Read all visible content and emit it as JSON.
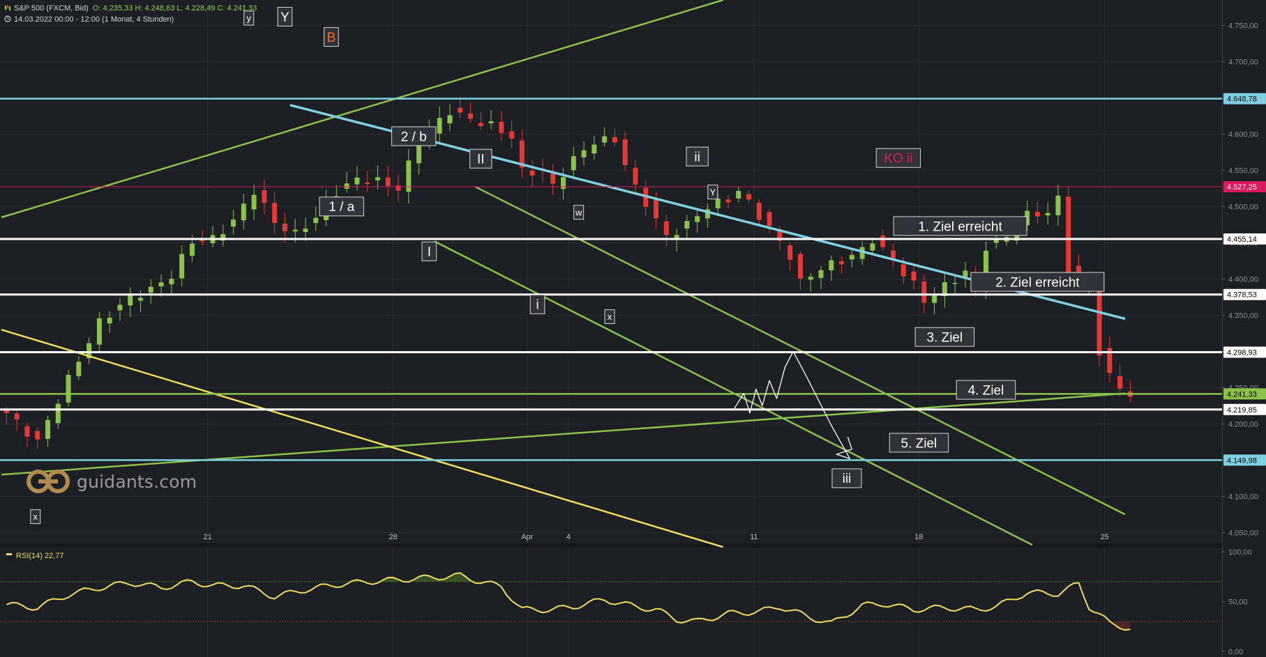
{
  "header": {
    "instrument": "S&P 500 (FXCM, Bid)",
    "ohlc": "O: 4.235,33   H: 4.248,63   L: 4.228,49   C: 4.241,33",
    "range": "14.03.2022 00:00 - 12:00   (1 Monat, 4 Stunden)"
  },
  "logo": {
    "text": "guidants.com",
    "icon": "guidants-logo-icon"
  },
  "colors": {
    "background": "#1c1f24",
    "grid": "#2a2e34",
    "bull": "#8bc34a",
    "bear": "#e53935",
    "green_line": "#8bc34a",
    "light_blue": "#7fd0e0",
    "yellow": "#f2dc5d",
    "ko_red": "#d81b60",
    "white": "#ffffff"
  },
  "chart_data": [
    {
      "type": "candlestick",
      "title": "S&P 500 (FXCM, Bid)",
      "interval": "4 Stunden",
      "ylim": [
        4035,
        4785
      ],
      "y_ticks": [
        "4.050,00",
        "4.100,00",
        "4.150,00",
        "4.200,00",
        "4.250,00",
        "4.300,00",
        "4.350,00",
        "4.400,00",
        "4.450,00",
        "4.500,00",
        "4.550,00",
        "4.600,00",
        "4.650,00",
        "4.700,00",
        "4.750,00"
      ],
      "y_ticks_values": [
        4050,
        4100,
        4150,
        4200,
        4250,
        4300,
        4350,
        4400,
        4450,
        4500,
        4550,
        4600,
        4650,
        4700,
        4750
      ],
      "x_ticks": [
        "21",
        "28",
        "Apr",
        "4",
        "11",
        "18",
        "25"
      ],
      "bar_count": 160,
      "x_tick_positions": [
        20,
        38,
        51,
        55,
        73,
        89,
        107
      ],
      "close_path": [
        [
          0,
          4215
        ],
        [
          3,
          4175
        ],
        [
          6,
          4262
        ],
        [
          9,
          4340
        ],
        [
          12,
          4375
        ],
        [
          14,
          4385
        ],
        [
          16,
          4405
        ],
        [
          18,
          4452
        ],
        [
          20,
          4455
        ],
        [
          22,
          4480
        ],
        [
          24,
          4522
        ],
        [
          26,
          4478
        ],
        [
          28,
          4462
        ],
        [
          30,
          4485
        ],
        [
          32,
          4520
        ],
        [
          34,
          4538
        ],
        [
          36,
          4535
        ],
        [
          38,
          4525
        ],
        [
          40,
          4590
        ],
        [
          42,
          4618
        ],
        [
          43,
          4632
        ],
        [
          45,
          4620
        ],
        [
          47,
          4612
        ],
        [
          49,
          4596
        ],
        [
          50,
          4548
        ],
        [
          52,
          4548
        ],
        [
          53,
          4528
        ],
        [
          55,
          4565
        ],
        [
          57,
          4590
        ],
        [
          59,
          4592
        ],
        [
          61,
          4525
        ],
        [
          62,
          4505
        ],
        [
          64,
          4458
        ],
        [
          66,
          4475
        ],
        [
          68,
          4500
        ],
        [
          70,
          4510
        ],
        [
          71,
          4522
        ],
        [
          72,
          4505
        ],
        [
          74,
          4470
        ],
        [
          76,
          4432
        ],
        [
          77,
          4395
        ],
        [
          79,
          4415
        ],
        [
          81,
          4425
        ],
        [
          83,
          4440
        ],
        [
          84,
          4455
        ],
        [
          86,
          4425
        ],
        [
          88,
          4392
        ],
        [
          89,
          4370
        ],
        [
          91,
          4390
        ],
        [
          93,
          4410
        ],
        [
          94,
          4385
        ],
        [
          95,
          4445
        ],
        [
          97,
          4458
        ],
        [
          99,
          4488
        ],
        [
          101,
          4492
        ],
        [
          102,
          4510
        ],
        [
          103,
          4415
        ],
        [
          104,
          4398
        ],
        [
          105,
          4392
        ],
        [
          106,
          4300
        ],
        [
          107,
          4265
        ],
        [
          108,
          4250
        ],
        [
          109,
          4241
        ]
      ],
      "horizontal_levels": [
        {
          "value": 4648.78,
          "label": "4.648,78",
          "color": "#7fd0e0"
        },
        {
          "value": 4527.25,
          "label": "4.527,25",
          "color": "#d81b60"
        },
        {
          "value": 4455.14,
          "label": "4.455,14",
          "color": "#ffffff"
        },
        {
          "value": 4378.53,
          "label": "4.378,53",
          "color": "#ffffff"
        },
        {
          "value": 4298.93,
          "label": "4.298,93",
          "color": "#ffffff"
        },
        {
          "value": 4241.33,
          "label": "4.241,33",
          "color": "#8bc34a"
        },
        {
          "value": 4219.85,
          "label": "4.219,85",
          "color": "#ffffff"
        },
        {
          "value": 4149.98,
          "label": "4.149,98",
          "color": "#7fd0e0"
        }
      ],
      "trendlines": [
        {
          "color": "#8bc34a",
          "from": [
            0,
            4485
          ],
          "to": [
            70,
            4785
          ]
        },
        {
          "color": "#8bc34a",
          "from": [
            0,
            4130
          ],
          "to": [
            109,
            4242
          ]
        },
        {
          "color": "#7fd0e0",
          "from": [
            28,
            4640
          ],
          "to": [
            109,
            4345
          ]
        },
        {
          "color": "#f2dc5d",
          "from": [
            0,
            4330
          ],
          "to": [
            70,
            4030
          ]
        },
        {
          "color": "#8bc34a",
          "from": [
            46,
            4527
          ],
          "to": [
            109,
            4075
          ]
        },
        {
          "color": "#8bc34a",
          "from": [
            42,
            4452
          ],
          "to": [
            100,
            4033
          ]
        }
      ],
      "annotations": [
        {
          "text": "y",
          "bar": 24,
          "value": 4760,
          "style": "small"
        },
        {
          "text": "Y",
          "bar": 27.5,
          "value": 4762,
          "style": "big"
        },
        {
          "text": "B",
          "bar": 32,
          "value": 4734,
          "style": "orange"
        },
        {
          "text": "2 / b",
          "bar": 40,
          "value": 4597,
          "style": "big"
        },
        {
          "text": "II",
          "bar": 46.5,
          "value": 4566,
          "style": "big"
        },
        {
          "text": "ii",
          "bar": 67.5,
          "value": 4569,
          "style": "big"
        },
        {
          "text": "Y",
          "bar": 69,
          "value": 4520,
          "style": "small"
        },
        {
          "text": "KO ii",
          "bar": 87,
          "value": 4567,
          "style": "ko"
        },
        {
          "text": "1 / a",
          "bar": 33,
          "value": 4500,
          "style": "big"
        },
        {
          "text": "w",
          "bar": 56,
          "value": 4492,
          "style": "small"
        },
        {
          "text": "I",
          "bar": 41.5,
          "value": 4438,
          "style": "big"
        },
        {
          "text": "i",
          "bar": 52,
          "value": 4365,
          "style": "big"
        },
        {
          "text": "x",
          "bar": 59,
          "value": 4348,
          "style": "small"
        },
        {
          "text": "1. Ziel  erreicht",
          "bar": 93,
          "value": 4473,
          "style": "big"
        },
        {
          "text": "2. Ziel  erreicht",
          "bar": 100.5,
          "value": 4396,
          "style": "big"
        },
        {
          "text": "3. Ziel",
          "bar": 91.5,
          "value": 4320,
          "style": "big"
        },
        {
          "text": "4. Ziel",
          "bar": 95.5,
          "value": 4247,
          "style": "big"
        },
        {
          "text": "5. Ziel",
          "bar": 89,
          "value": 4174,
          "style": "big"
        },
        {
          "text": "iii",
          "bar": 82,
          "value": 4125,
          "style": "big"
        },
        {
          "text": "x",
          "bar": 3.3,
          "value": 4072,
          "style": "small"
        }
      ],
      "projection_path": [
        [
          71,
          4219
        ],
        [
          72,
          4242
        ],
        [
          72.6,
          4215
        ],
        [
          73.2,
          4248
        ],
        [
          73.8,
          4225
        ],
        [
          74.5,
          4260
        ],
        [
          75.2,
          4235
        ],
        [
          76,
          4278
        ],
        [
          76.8,
          4300
        ],
        [
          78,
          4268
        ],
        [
          80.5,
          4198
        ],
        [
          82.3,
          4152
        ],
        [
          81,
          4158
        ],
        [
          82.5,
          4165
        ],
        [
          82.1,
          4182
        ]
      ]
    },
    {
      "type": "line",
      "title": "RSI(14)",
      "current": "22,77",
      "ylim": [
        0,
        100
      ],
      "y_ticks": [
        "0,00",
        "50,00",
        "100,00"
      ],
      "y_ticks_values": [
        0,
        50,
        100
      ],
      "levels": [
        70,
        30
      ],
      "series": [
        {
          "name": "RSI(14)",
          "values_path": [
            [
              0,
              47
            ],
            [
              3,
              44
            ],
            [
              6,
              57
            ],
            [
              9,
              64
            ],
            [
              12,
              69
            ],
            [
              15,
              64
            ],
            [
              18,
              70
            ],
            [
              20,
              66
            ],
            [
              23,
              66
            ],
            [
              26,
              55
            ],
            [
              29,
              62
            ],
            [
              32,
              67
            ],
            [
              35,
              70
            ],
            [
              38,
              72
            ],
            [
              41,
              74
            ],
            [
              44,
              76
            ],
            [
              46,
              70
            ],
            [
              48,
              65
            ],
            [
              50,
              42
            ],
            [
              53,
              42
            ],
            [
              55,
              45
            ],
            [
              58,
              52
            ],
            [
              61,
              45
            ],
            [
              63,
              42
            ],
            [
              65,
              32
            ],
            [
              67,
              30
            ],
            [
              70,
              38
            ],
            [
              73,
              40
            ],
            [
              75,
              45
            ],
            [
              78,
              34
            ],
            [
              80,
              28
            ],
            [
              83,
              46
            ],
            [
              85,
              48
            ],
            [
              88,
              42
            ],
            [
              91,
              44
            ],
            [
              94,
              42
            ],
            [
              96,
              45
            ],
            [
              99,
              59
            ],
            [
              102,
              58
            ],
            [
              104,
              68
            ],
            [
              105,
              45
            ],
            [
              106,
              37
            ],
            [
              107,
              28
            ],
            [
              109,
              23
            ]
          ]
        }
      ]
    }
  ]
}
